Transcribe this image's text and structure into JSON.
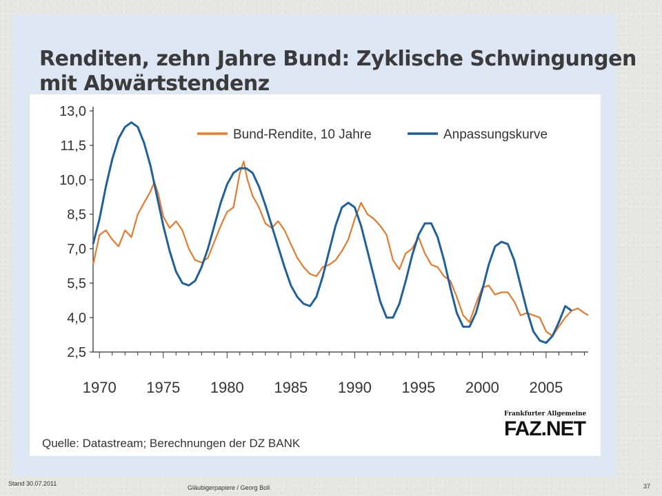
{
  "title_line1": "Renditen, zehn Jahre Bund: Zyklische Schwingungen",
  "title_line2": "mit Abwärtstendenz",
  "source": "Quelle: Datastream; Berechnungen der DZ BANK",
  "logo": {
    "top": "Frankfurter Allgemeine",
    "main": "FAZ.NET"
  },
  "footer": {
    "date": "Stand 30.07.2011",
    "center": "Gläubigerpapiere / Georg Boll",
    "page": "37"
  },
  "colors": {
    "bund": "#e8782a",
    "fit": "#1f5f9a",
    "panel": "#dde7f3"
  },
  "chart_data": {
    "type": "line",
    "title": "",
    "xlabel": "",
    "ylabel": "",
    "xlim": [
      1969.5,
      2008.3
    ],
    "ylim": [
      2.5,
      13.0
    ],
    "yticks": [
      "13,0",
      "11,5",
      "10,0",
      "8,5",
      "7,0",
      "5,5",
      "4,0",
      "2,5"
    ],
    "ytick_values": [
      13.0,
      11.5,
      10.0,
      8.5,
      7.0,
      5.5,
      4.0,
      2.5
    ],
    "xticks": [
      "1970",
      "1975",
      "1980",
      "1985",
      "1990",
      "1995",
      "2000",
      "2005"
    ],
    "xtick_values": [
      1970,
      1975,
      1980,
      1985,
      1990,
      1995,
      2000,
      2005
    ],
    "grid": false,
    "legend_position": "top",
    "series": [
      {
        "name": "Bund-Rendite, 10 Jahre",
        "color": "#e8782a",
        "x": [
          1969.5,
          1970.0,
          1970.5,
          1971.0,
          1971.5,
          1972.0,
          1972.5,
          1973.0,
          1973.5,
          1974.0,
          1974.3,
          1974.6,
          1975.0,
          1975.5,
          1976.0,
          1976.5,
          1977.0,
          1977.5,
          1978.0,
          1978.5,
          1979.0,
          1979.5,
          1980.0,
          1980.5,
          1981.0,
          1981.3,
          1981.6,
          1982.0,
          1982.5,
          1983.0,
          1983.5,
          1984.0,
          1984.5,
          1985.0,
          1985.5,
          1986.0,
          1986.5,
          1987.0,
          1987.5,
          1988.0,
          1988.5,
          1989.0,
          1989.5,
          1990.0,
          1990.5,
          1991.0,
          1991.5,
          1992.0,
          1992.5,
          1993.0,
          1993.5,
          1994.0,
          1994.5,
          1995.0,
          1995.5,
          1996.0,
          1996.5,
          1997.0,
          1997.5,
          1998.0,
          1998.5,
          1999.0,
          1999.5,
          2000.0,
          2000.5,
          2001.0,
          2001.5,
          2002.0,
          2002.5,
          2003.0,
          2003.5,
          2004.0,
          2004.5,
          2005.0,
          2005.5,
          2006.0,
          2006.5,
          2007.0,
          2007.5,
          2008.0,
          2008.3
        ],
        "values": [
          6.3,
          7.6,
          7.8,
          7.4,
          7.1,
          7.8,
          7.5,
          8.5,
          9.0,
          9.5,
          9.9,
          9.4,
          8.4,
          7.9,
          8.2,
          7.8,
          7.0,
          6.5,
          6.4,
          6.6,
          7.3,
          8.0,
          8.6,
          8.8,
          10.3,
          10.8,
          10.0,
          9.3,
          8.8,
          8.1,
          7.9,
          8.2,
          7.8,
          7.2,
          6.6,
          6.2,
          5.9,
          5.8,
          6.2,
          6.3,
          6.5,
          6.9,
          7.4,
          8.3,
          9.0,
          8.5,
          8.3,
          8.0,
          7.6,
          6.5,
          6.1,
          6.8,
          7.0,
          7.5,
          6.8,
          6.3,
          6.2,
          5.8,
          5.6,
          4.9,
          4.1,
          3.8,
          4.6,
          5.3,
          5.4,
          5.0,
          5.1,
          5.1,
          4.7,
          4.1,
          4.2,
          4.1,
          4.0,
          3.4,
          3.2,
          3.6,
          4.0,
          4.3,
          4.4,
          4.2,
          4.1
        ]
      },
      {
        "name": "Anpassungskurve",
        "color": "#1f5f9a",
        "x": [
          1969.5,
          1970.0,
          1970.5,
          1971.0,
          1971.5,
          1972.0,
          1972.5,
          1973.0,
          1973.5,
          1974.0,
          1974.5,
          1975.0,
          1975.5,
          1976.0,
          1976.5,
          1977.0,
          1977.5,
          1978.0,
          1978.5,
          1979.0,
          1979.5,
          1980.0,
          1980.5,
          1981.0,
          1981.5,
          1982.0,
          1982.5,
          1983.0,
          1983.5,
          1984.0,
          1984.5,
          1985.0,
          1985.5,
          1986.0,
          1986.5,
          1987.0,
          1987.5,
          1988.0,
          1988.5,
          1989.0,
          1989.5,
          1990.0,
          1990.5,
          1991.0,
          1991.5,
          1992.0,
          1992.5,
          1993.0,
          1993.5,
          1994.0,
          1994.5,
          1995.0,
          1995.5,
          1996.0,
          1996.5,
          1997.0,
          1997.5,
          1998.0,
          1998.5,
          1999.0,
          1999.5,
          2000.0,
          2000.5,
          2001.0,
          2001.5,
          2002.0,
          2002.5,
          2003.0,
          2003.5,
          2004.0,
          2004.5,
          2005.0,
          2005.5,
          2006.0,
          2006.5,
          2007.0
        ],
        "values": [
          7.2,
          8.3,
          9.7,
          10.9,
          11.8,
          12.3,
          12.5,
          12.3,
          11.6,
          10.6,
          9.3,
          8.0,
          6.9,
          6.0,
          5.5,
          5.4,
          5.6,
          6.2,
          7.0,
          8.0,
          9.0,
          9.8,
          10.3,
          10.5,
          10.5,
          10.3,
          9.7,
          8.9,
          8.0,
          7.1,
          6.2,
          5.4,
          4.9,
          4.6,
          4.5,
          4.9,
          5.8,
          6.9,
          8.0,
          8.8,
          9.0,
          8.8,
          8.0,
          6.9,
          5.8,
          4.7,
          4.0,
          4.0,
          4.6,
          5.6,
          6.7,
          7.6,
          8.1,
          8.1,
          7.5,
          6.5,
          5.3,
          4.2,
          3.6,
          3.6,
          4.2,
          5.2,
          6.3,
          7.1,
          7.3,
          7.2,
          6.5,
          5.4,
          4.3,
          3.4,
          3.0,
          2.9,
          3.2,
          3.8,
          4.5,
          4.3
        ]
      }
    ]
  }
}
